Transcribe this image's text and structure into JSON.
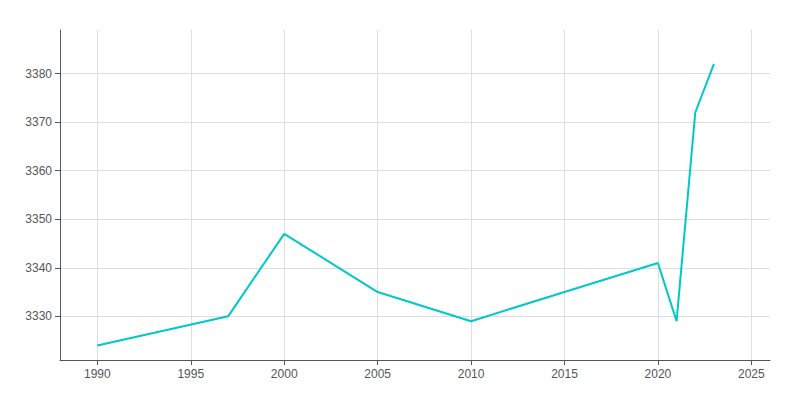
{
  "chart_data": {
    "type": "line",
    "x": [
      1990,
      1997,
      2000,
      2005,
      2010,
      2015,
      2020,
      2021,
      2022,
      2023
    ],
    "values": [
      3324,
      3330,
      3347,
      3335,
      3329,
      3335,
      3341,
      3329,
      3372,
      3382
    ],
    "color": "#00C8C8",
    "xlim": [
      1988,
      2026
    ],
    "ylim": [
      3321,
      3389
    ],
    "xticks": [
      1990,
      1995,
      2000,
      2005,
      2010,
      2015,
      2020,
      2025
    ],
    "yticks": [
      3330,
      3340,
      3350,
      3360,
      3370,
      3380
    ],
    "grid": true
  }
}
